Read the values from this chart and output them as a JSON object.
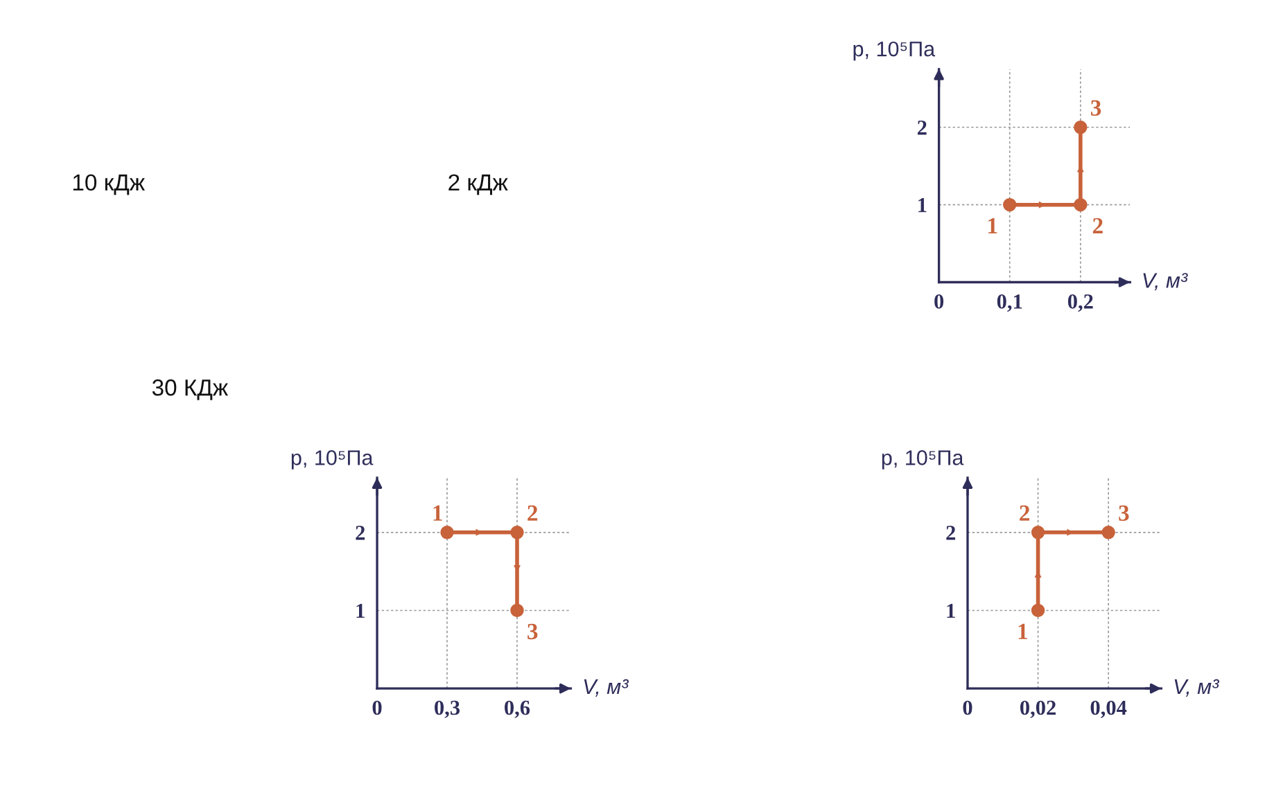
{
  "chart_data": [
    {
      "type": "other",
      "annotations": [
        "10 кДж",
        "2 кДж",
        "30 КДж"
      ]
    },
    {
      "type": "line",
      "xlabel": "V, м³",
      "ylabel": "p, 10⁵Па",
      "x": [
        0.1,
        0.2,
        0.2
      ],
      "series": [
        {
          "color": "#c8623a",
          "values": [
            1,
            1,
            2
          ]
        }
      ],
      "xlim": [
        0,
        0.27
      ],
      "ylim": [
        0,
        2.75
      ],
      "xticks": [
        {
          "value": 0,
          "label": "0"
        },
        {
          "value": 0.1,
          "label": "0,1"
        },
        {
          "value": 0.2,
          "label": "0,2"
        }
      ],
      "yticks": [
        1,
        2
      ],
      "grid": true,
      "marker": "circle",
      "line_style": "solid",
      "annotations": [
        {
          "text": "1",
          "x": 0.1,
          "y": 1
        },
        {
          "text": "2",
          "x": 0.2,
          "y": 1
        },
        {
          "text": "3",
          "x": 0.2,
          "y": 2
        }
      ]
    },
    {
      "type": "line",
      "xlabel": "V, м³",
      "ylabel": "p, 10⁵Па",
      "x": [
        0.3,
        0.6,
        0.6
      ],
      "series": [
        {
          "color": "#c8623a",
          "values": [
            2,
            2,
            1
          ]
        }
      ],
      "xlim": [
        0,
        0.83
      ],
      "ylim": [
        0,
        2.7
      ],
      "xticks": [
        {
          "value": 0,
          "label": "0"
        },
        {
          "value": 0.3,
          "label": "0,3"
        },
        {
          "value": 0.6,
          "label": "0,6"
        }
      ],
      "yticks": [
        1,
        2
      ],
      "grid": true,
      "marker": "circle",
      "line_style": "solid",
      "annotations": [
        {
          "text": "1",
          "x": 0.3,
          "y": 2
        },
        {
          "text": "2",
          "x": 0.6,
          "y": 2
        },
        {
          "text": "3",
          "x": 0.6,
          "y": 1
        }
      ]
    },
    {
      "type": "line",
      "xlabel": "V, м³",
      "ylabel": "p, 10⁵Па",
      "x": [
        0.02,
        0.02,
        0.04
      ],
      "series": [
        {
          "color": "#c8623a",
          "values": [
            1,
            2,
            2
          ]
        }
      ],
      "xlim": [
        0,
        0.055
      ],
      "ylim": [
        0,
        2.7
      ],
      "xticks": [
        {
          "value": 0,
          "label": "0"
        },
        {
          "value": 0.02,
          "label": "0,02"
        },
        {
          "value": 0.04,
          "label": "0,04"
        }
      ],
      "yticks": [
        1,
        2
      ],
      "grid": true,
      "marker": "circle",
      "line_style": "solid",
      "annotations": [
        {
          "text": "1",
          "x": 0.02,
          "y": 1
        },
        {
          "text": "2",
          "x": 0.02,
          "y": 2
        },
        {
          "text": "3",
          "x": 0.04,
          "y": 2
        }
      ]
    }
  ]
}
